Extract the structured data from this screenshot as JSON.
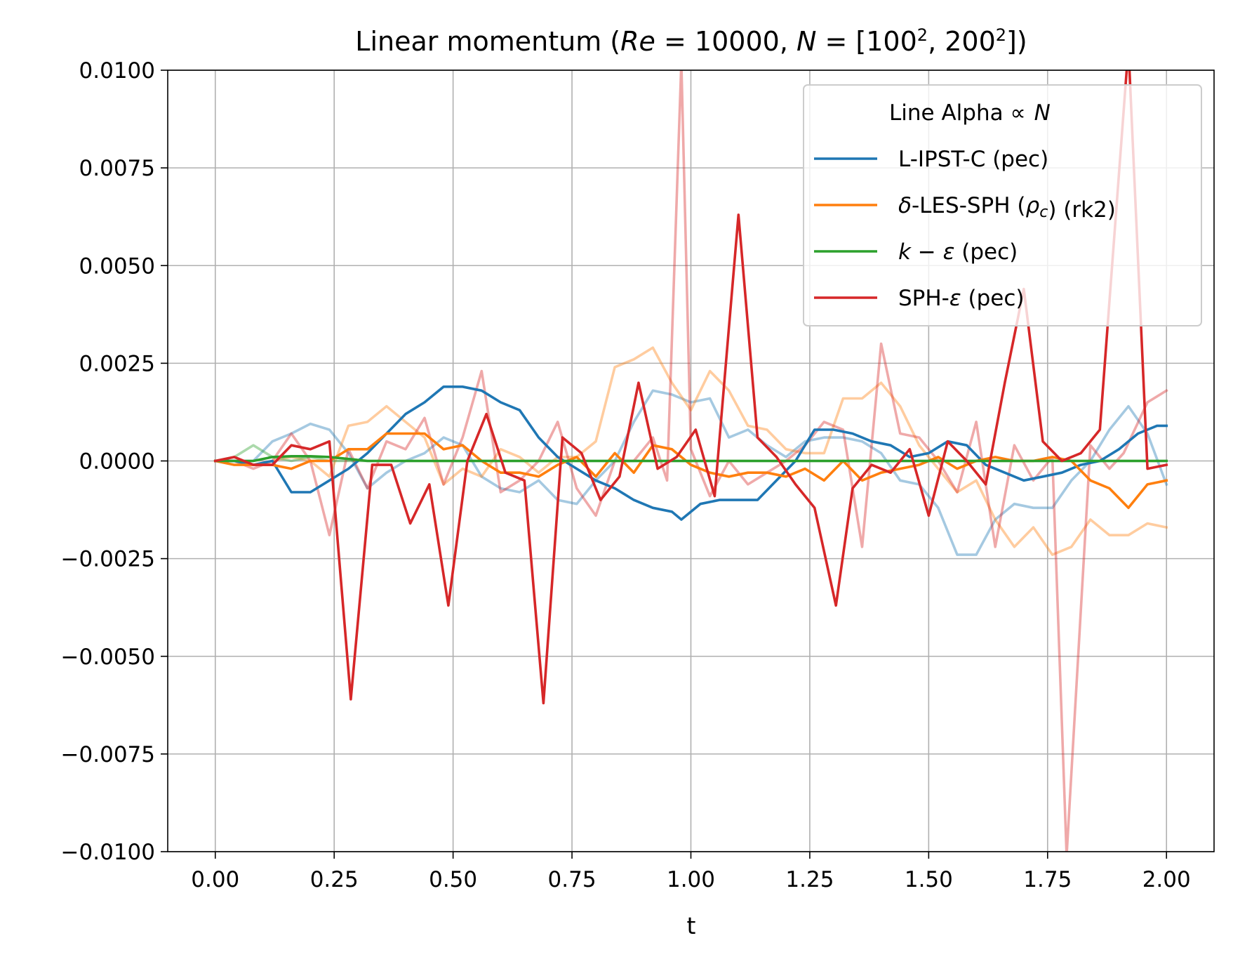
{
  "chart_data": {
    "type": "line",
    "title_parts": {
      "prefix": "Linear momentum  (",
      "re": "Re",
      "eq1": " = 10000, ",
      "n": "N",
      "eq2": " = [100",
      "exp1": "2",
      "mid": ", 200",
      "exp2": "2",
      "suffix": "])"
    },
    "xlabel": "t",
    "ylabel": "",
    "xlim": [
      -0.1,
      2.1
    ],
    "ylim": [
      -0.01,
      0.01
    ],
    "xticks": [
      0,
      0.25,
      0.5,
      0.75,
      1.0,
      1.25,
      1.5,
      1.75,
      2.0
    ],
    "xtick_labels": [
      "0.00",
      "0.25",
      "0.50",
      "0.75",
      "1.00",
      "1.25",
      "1.50",
      "1.75",
      "2.00"
    ],
    "yticks": [
      -0.01,
      -0.0075,
      -0.005,
      -0.0025,
      0,
      0.0025,
      0.005,
      0.0075,
      0.01
    ],
    "ytick_labels": [
      "−0.0100",
      "−0.0075",
      "−0.0050",
      "−0.0025",
      "0.0000",
      "0.0025",
      "0.0050",
      "0.0075",
      "0.0100"
    ],
    "grid": true,
    "legend": {
      "title_text": "Line Alpha ",
      "title_symbol": "∝",
      "title_var": "N",
      "placement": "upper right",
      "entries": [
        {
          "series": "lipst_200",
          "label_parts": [
            {
              "t": "L-IPST-C (pec)",
              "i": false
            }
          ]
        },
        {
          "series": "dles_200",
          "label_parts": [
            {
              "t": "δ",
              "i": true
            },
            {
              "t": "-LES-SPH (",
              "i": false
            },
            {
              "t": "ρ",
              "i": true
            },
            {
              "t": "c",
              "i": true,
              "sub": true
            },
            {
              "t": ") (rk2)",
              "i": false
            }
          ]
        },
        {
          "series": "keps_200",
          "label_parts": [
            {
              "t": "k",
              "i": true
            },
            {
              "t": " − ",
              "i": false
            },
            {
              "t": "ε",
              "i": true
            },
            {
              "t": " (pec)",
              "i": false
            }
          ]
        },
        {
          "series": "spheps_200",
          "label_parts": [
            {
              "t": "SPH-",
              "i": false
            },
            {
              "t": "ε",
              "i": true
            },
            {
              "t": " (pec)",
              "i": false
            }
          ]
        }
      ]
    },
    "series": [
      {
        "id": "lipst_100",
        "color": "#1f77b4",
        "alpha": 0.4,
        "x": [
          0,
          0.04,
          0.08,
          0.12,
          0.16,
          0.2,
          0.24,
          0.28,
          0.32,
          0.36,
          0.4,
          0.44,
          0.48,
          0.52,
          0.56,
          0.6,
          0.64,
          0.68,
          0.72,
          0.76,
          0.8,
          0.84,
          0.88,
          0.92,
          0.96,
          1.0,
          1.04,
          1.08,
          1.12,
          1.16,
          1.2,
          1.24,
          1.28,
          1.32,
          1.36,
          1.4,
          1.44,
          1.48,
          1.52,
          1.56,
          1.6,
          1.64,
          1.68,
          1.72,
          1.76,
          1.8,
          1.84,
          1.88,
          1.92,
          1.96,
          2.0
        ],
        "y": [
          0,
          0,
          0,
          0.0005,
          0.0007,
          0.00095,
          0.0008,
          0.0002,
          -0.0007,
          -0.0003,
          0,
          0.0002,
          0.0006,
          0.0004,
          -0.0004,
          -0.0007,
          -0.0008,
          -0.0005,
          -0.001,
          -0.0011,
          -0.0005,
          0,
          0.001,
          0.0018,
          0.0017,
          0.0015,
          0.0016,
          0.0006,
          0.0008,
          0.0004,
          0.0001,
          0.0005,
          0.0006,
          0.0006,
          0.0005,
          0.0002,
          -0.0005,
          -0.0006,
          -0.0012,
          -0.0024,
          -0.0024,
          -0.0015,
          -0.0011,
          -0.0012,
          -0.0012,
          -0.0005,
          0,
          0.0008,
          0.0014,
          0.0007,
          -0.0006
        ]
      },
      {
        "id": "dles_100",
        "color": "#ff7f0e",
        "alpha": 0.4,
        "x": [
          0,
          0.04,
          0.08,
          0.12,
          0.16,
          0.2,
          0.24,
          0.28,
          0.32,
          0.36,
          0.4,
          0.44,
          0.48,
          0.52,
          0.56,
          0.6,
          0.64,
          0.68,
          0.72,
          0.76,
          0.8,
          0.84,
          0.88,
          0.92,
          0.96,
          1.0,
          1.04,
          1.08,
          1.12,
          1.16,
          1.2,
          1.24,
          1.28,
          1.32,
          1.36,
          1.4,
          1.44,
          1.48,
          1.52,
          1.56,
          1.6,
          1.64,
          1.68,
          1.72,
          1.76,
          1.8,
          1.84,
          1.88,
          1.92,
          1.96,
          2.0
        ],
        "y": [
          0,
          0,
          -0.0001,
          0,
          0.0001,
          0,
          -0.0004,
          0.0009,
          0.001,
          0.0014,
          0.001,
          0.0006,
          -0.0006,
          -0.0002,
          -0.0004,
          0.0003,
          0.0001,
          -0.0003,
          0.0001,
          0.0001,
          0.0005,
          0.0024,
          0.0026,
          0.0029,
          0.002,
          0.0013,
          0.0023,
          0.0018,
          0.0009,
          0.0008,
          0.0003,
          0.0002,
          0.0002,
          0.0016,
          0.0016,
          0.002,
          0.0014,
          0.0004,
          -0.0002,
          -0.0008,
          -0.0005,
          -0.0015,
          -0.0022,
          -0.0017,
          -0.0024,
          -0.0022,
          -0.0015,
          -0.0019,
          -0.0019,
          -0.0016,
          -0.0017
        ]
      },
      {
        "id": "keps_100",
        "color": "#2ca02c",
        "alpha": 0.4,
        "x": [
          0,
          0.04,
          0.08,
          0.12,
          0.16,
          0.2,
          0.24,
          0.28,
          0.32,
          0.4,
          0.6,
          0.8,
          1.0,
          1.2,
          1.4,
          1.6,
          1.8,
          2.0
        ],
        "y": [
          0,
          0.0001,
          0.0004,
          0.0001,
          0,
          0.0001,
          0,
          0,
          0,
          0,
          0,
          0,
          0,
          0,
          0,
          0,
          0,
          0
        ]
      },
      {
        "id": "spheps_100",
        "color": "#d62728",
        "alpha": 0.4,
        "x": [
          0,
          0.04,
          0.08,
          0.12,
          0.16,
          0.2,
          0.24,
          0.28,
          0.32,
          0.36,
          0.4,
          0.44,
          0.48,
          0.52,
          0.56,
          0.6,
          0.64,
          0.68,
          0.72,
          0.76,
          0.8,
          0.84,
          0.88,
          0.92,
          0.95,
          0.98,
          1.0,
          1.04,
          1.08,
          1.12,
          1.16,
          1.2,
          1.24,
          1.28,
          1.32,
          1.36,
          1.4,
          1.44,
          1.48,
          1.52,
          1.56,
          1.6,
          1.64,
          1.68,
          1.72,
          1.76,
          1.79,
          1.84,
          1.88,
          1.91,
          1.96,
          2.0
        ],
        "y": [
          0,
          0,
          -0.0002,
          0,
          0.0007,
          0,
          -0.0019,
          0.0003,
          -0.0007,
          0.0005,
          0.0003,
          0.0011,
          -0.0006,
          0.0006,
          0.0023,
          -0.0008,
          -0.0005,
          0,
          0.001,
          -0.0007,
          -0.0014,
          0,
          0,
          0.0006,
          -0.0005,
          0.0102,
          0.0003,
          -0.0009,
          0,
          -0.0006,
          -0.0003,
          0,
          0.0004,
          0.001,
          0.0008,
          -0.0022,
          0.003,
          0.0007,
          0.0006,
          0,
          -0.0008,
          0.001,
          -0.0022,
          0.0004,
          -0.0005,
          0.0001,
          -0.0101,
          0.0004,
          -0.0002,
          0.0002,
          0.0015,
          0.0018
        ]
      },
      {
        "id": "lipst_200",
        "color": "#1f77b4",
        "alpha": 1,
        "x": [
          0,
          0.04,
          0.08,
          0.12,
          0.16,
          0.2,
          0.24,
          0.28,
          0.32,
          0.36,
          0.4,
          0.44,
          0.48,
          0.52,
          0.56,
          0.6,
          0.64,
          0.68,
          0.72,
          0.76,
          0.8,
          0.84,
          0.88,
          0.92,
          0.96,
          0.98,
          1.02,
          1.06,
          1.1,
          1.14,
          1.18,
          1.22,
          1.26,
          1.3,
          1.34,
          1.38,
          1.42,
          1.46,
          1.5,
          1.54,
          1.58,
          1.62,
          1.66,
          1.7,
          1.74,
          1.78,
          1.82,
          1.86,
          1.9,
          1.94,
          1.98,
          2.0
        ],
        "y": [
          0,
          0,
          -0.0001,
          0,
          -0.0008,
          -0.0008,
          -0.0005,
          -0.0002,
          0.0002,
          0.0007,
          0.0012,
          0.0015,
          0.0019,
          0.0019,
          0.0018,
          0.0015,
          0.0013,
          0.0006,
          0.0001,
          -0.0002,
          -0.0005,
          -0.0007,
          -0.001,
          -0.0012,
          -0.0013,
          -0.0015,
          -0.0011,
          -0.001,
          -0.001,
          -0.001,
          -0.0005,
          0,
          0.0008,
          0.0008,
          0.0007,
          0.0005,
          0.0004,
          0.0001,
          0.0002,
          0.0005,
          0.0004,
          -0.0001,
          -0.0003,
          -0.0005,
          -0.0004,
          -0.0003,
          -0.0001,
          0,
          0.0003,
          0.0007,
          0.0009,
          0.0009
        ]
      },
      {
        "id": "dles_200",
        "color": "#ff7f0e",
        "alpha": 1,
        "x": [
          0,
          0.04,
          0.08,
          0.12,
          0.16,
          0.2,
          0.24,
          0.28,
          0.32,
          0.36,
          0.4,
          0.44,
          0.48,
          0.52,
          0.56,
          0.6,
          0.64,
          0.68,
          0.72,
          0.76,
          0.8,
          0.84,
          0.88,
          0.92,
          0.96,
          1.0,
          1.04,
          1.08,
          1.12,
          1.16,
          1.2,
          1.24,
          1.28,
          1.32,
          1.36,
          1.4,
          1.44,
          1.48,
          1.52,
          1.56,
          1.6,
          1.64,
          1.68,
          1.72,
          1.76,
          1.8,
          1.84,
          1.88,
          1.92,
          1.96,
          2.0
        ],
        "y": [
          0,
          -0.0001,
          -0.0001,
          -0.0001,
          -0.0002,
          0,
          0,
          0.0003,
          0.0003,
          0.0007,
          0.0007,
          0.0007,
          0.0003,
          0.0004,
          0,
          -0.0003,
          -0.0003,
          -0.0004,
          -0.0001,
          0.0001,
          -0.0004,
          0.0002,
          -0.0003,
          0.0004,
          0.0003,
          -0.0001,
          -0.0003,
          -0.0004,
          -0.0003,
          -0.0003,
          -0.0004,
          -0.0002,
          -0.0005,
          0,
          -0.0005,
          -0.0003,
          -0.0002,
          -0.0001,
          0.0001,
          -0.0002,
          0,
          0.0001,
          0,
          0,
          0.0001,
          0,
          -0.0005,
          -0.0007,
          -0.0012,
          -0.0006,
          -0.0005
        ]
      },
      {
        "id": "keps_200",
        "color": "#2ca02c",
        "alpha": 1,
        "x": [
          0,
          0.04,
          0.08,
          0.12,
          0.16,
          0.2,
          0.24,
          0.28,
          0.32,
          0.4,
          0.6,
          0.8,
          1.0,
          1.2,
          1.4,
          1.6,
          1.8,
          2.0
        ],
        "y": [
          0,
          0,
          0,
          0.0001,
          0.00012,
          0.00012,
          0.0001,
          5e-05,
          0,
          0,
          0,
          0,
          0,
          0,
          0,
          0,
          0,
          0
        ]
      },
      {
        "id": "spheps_200",
        "color": "#d62728",
        "alpha": 1,
        "x": [
          0,
          0.04,
          0.08,
          0.12,
          0.16,
          0.2,
          0.24,
          0.285,
          0.33,
          0.37,
          0.41,
          0.45,
          0.49,
          0.53,
          0.57,
          0.61,
          0.65,
          0.69,
          0.73,
          0.77,
          0.81,
          0.85,
          0.89,
          0.93,
          0.97,
          1.01,
          1.05,
          1.1,
          1.14,
          1.18,
          1.22,
          1.26,
          1.305,
          1.34,
          1.38,
          1.42,
          1.46,
          1.5,
          1.54,
          1.58,
          1.62,
          1.66,
          1.7,
          1.74,
          1.78,
          1.82,
          1.86,
          1.92,
          1.96,
          2.0
        ],
        "y": [
          0,
          0.0001,
          -0.0001,
          -0.0001,
          0.0004,
          0.0003,
          0.0005,
          -0.0061,
          -0.0001,
          -0.0001,
          -0.0016,
          -0.0006,
          -0.0037,
          0,
          0.0012,
          -0.0003,
          -0.0005,
          -0.0062,
          0.0006,
          0.0002,
          -0.001,
          -0.0004,
          0.002,
          -0.0002,
          0.0001,
          0.0008,
          -0.0009,
          0.0063,
          0.0006,
          0.0001,
          -0.0006,
          -0.0012,
          -0.0037,
          -0.0007,
          -0.0001,
          -0.0003,
          0.0003,
          -0.0014,
          0.0005,
          0,
          -0.0006,
          0.002,
          0.0044,
          0.0005,
          0,
          0.0002,
          0.0008,
          0.0106,
          -0.0002,
          -0.0001
        ]
      }
    ]
  }
}
